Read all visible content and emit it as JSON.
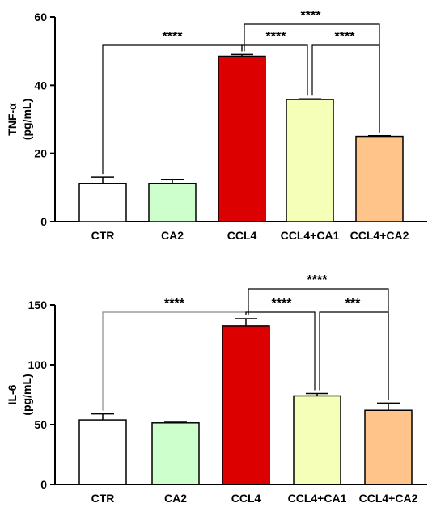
{
  "chart_data": [
    {
      "type": "bar",
      "categories": [
        "CTR",
        "CA2",
        "CCL4",
        "CCL4+CA1",
        "CCL4+CA2"
      ],
      "values": [
        11.2,
        11.2,
        48.5,
        35.8,
        25.0
      ],
      "errors": [
        1.8,
        1.2,
        0.5,
        0.2,
        0.2
      ],
      "colors": [
        "#ffffff",
        "#ccffcc",
        "#dd0000",
        "#f5ffb8",
        "#ffc48a"
      ],
      "ylabel": "TNF-α",
      "ylabel_unit": "(pg/mL)",
      "ylim": [
        0,
        60
      ],
      "yticks": [
        0,
        20,
        40,
        60
      ],
      "significance": [
        {
          "from": "CTR",
          "to": "CCL4",
          "label": "****"
        },
        {
          "from": "CCL4",
          "to": "CCL4+CA1",
          "label": "****"
        },
        {
          "from": "CCL4+CA1",
          "to": "CCL4+CA2",
          "label": "****"
        },
        {
          "from": "CCL4",
          "to": "CCL4+CA2",
          "label": "****"
        }
      ]
    },
    {
      "type": "bar",
      "categories": [
        "CTR",
        "CA2",
        "CCL4",
        "CCL4+CA1",
        "CCL4+CA2"
      ],
      "values": [
        54,
        51.5,
        132.5,
        74,
        62
      ],
      "errors": [
        5,
        0.5,
        6,
        2,
        6
      ],
      "colors": [
        "#ffffff",
        "#ccffcc",
        "#dd0000",
        "#f5ffb8",
        "#ffc48a"
      ],
      "ylabel": "IL-6",
      "ylabel_unit": "(pg/mL)",
      "ylim": [
        0,
        150
      ],
      "yticks": [
        0,
        50,
        100,
        150
      ],
      "significance": [
        {
          "from": "CTR",
          "to": "CCL4",
          "label": "****"
        },
        {
          "from": "CCL4",
          "to": "CCL4+CA1",
          "label": "****"
        },
        {
          "from": "CCL4+CA1",
          "to": "CCL4+CA2",
          "label": "***"
        },
        {
          "from": "CCL4",
          "to": "CCL4+CA2",
          "label": "****"
        }
      ]
    }
  ]
}
